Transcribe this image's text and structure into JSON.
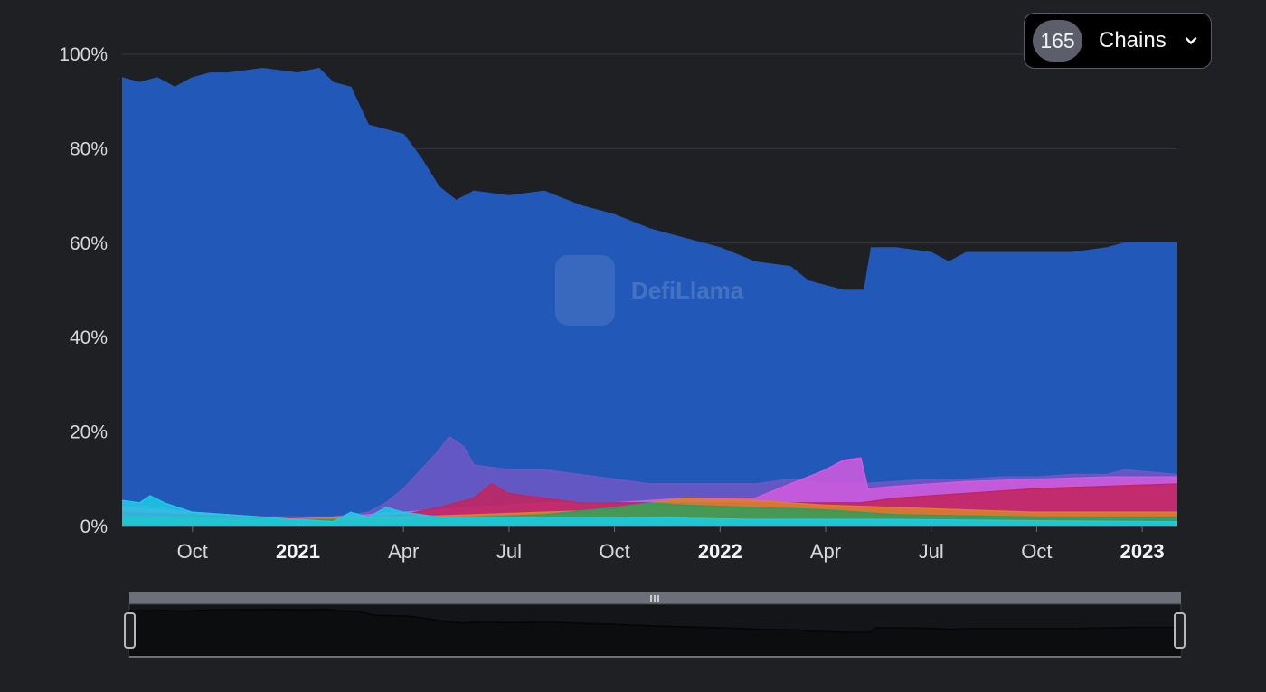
{
  "chain_selector": {
    "count": "165",
    "label": "Chains"
  },
  "watermark": "DefiLlama",
  "colors": {
    "background": "#1f2024",
    "grid": "#34363d",
    "axis_text": "#d8d8d8",
    "ethereum": "#2259b8"
  },
  "chart_data": {
    "type": "area",
    "stacked_percent": true,
    "y_ticks": [
      "0%",
      "20%",
      "40%",
      "60%",
      "80%",
      "100%"
    ],
    "ylim": [
      0,
      100
    ],
    "x_ticks": [
      {
        "label": "Oct",
        "bold": false,
        "t": 2
      },
      {
        "label": "2021",
        "bold": true,
        "t": 5
      },
      {
        "label": "Apr",
        "bold": false,
        "t": 8
      },
      {
        "label": "Jul",
        "bold": false,
        "t": 11
      },
      {
        "label": "Oct",
        "bold": false,
        "t": 14
      },
      {
        "label": "2022",
        "bold": true,
        "t": 17
      },
      {
        "label": "Apr",
        "bold": false,
        "t": 20
      },
      {
        "label": "Jul",
        "bold": false,
        "t": 23
      },
      {
        "label": "Oct",
        "bold": false,
        "t": 26
      },
      {
        "label": "2023",
        "bold": true,
        "t": 29
      }
    ],
    "xlim": [
      0,
      30
    ],
    "grid": true,
    "series": [
      {
        "color": "#2259b8",
        "points": [
          [
            0,
            95
          ],
          [
            0.5,
            94
          ],
          [
            1,
            95
          ],
          [
            1.5,
            93
          ],
          [
            2,
            95
          ],
          [
            2.5,
            96
          ],
          [
            3,
            96
          ],
          [
            4,
            97
          ],
          [
            5,
            96
          ],
          [
            5.6,
            97
          ],
          [
            6,
            94
          ],
          [
            6.5,
            93
          ],
          [
            7,
            85
          ],
          [
            8,
            83
          ],
          [
            8.5,
            78
          ],
          [
            9,
            72
          ],
          [
            9.5,
            69
          ],
          [
            10,
            71
          ],
          [
            11,
            70
          ],
          [
            12,
            71
          ],
          [
            13,
            68
          ],
          [
            14,
            66
          ],
          [
            15,
            63
          ],
          [
            16,
            61
          ],
          [
            17,
            59
          ],
          [
            18,
            56
          ],
          [
            19,
            55
          ],
          [
            19.5,
            52
          ],
          [
            20,
            51
          ],
          [
            20.5,
            50
          ],
          [
            21.1,
            50
          ],
          [
            21.3,
            59
          ],
          [
            22,
            59
          ],
          [
            23,
            58
          ],
          [
            23.5,
            56
          ],
          [
            24,
            58
          ],
          [
            25,
            58
          ],
          [
            26,
            58
          ],
          [
            27,
            58
          ],
          [
            28,
            59
          ],
          [
            28.5,
            60
          ],
          [
            30,
            60
          ]
        ]
      },
      {
        "color": "#6e58c4",
        "points": [
          [
            0,
            5
          ],
          [
            1,
            4
          ],
          [
            2,
            3
          ],
          [
            3,
            2.5
          ],
          [
            4,
            2
          ],
          [
            5,
            1.5
          ],
          [
            6,
            2
          ],
          [
            7,
            3
          ],
          [
            7.5,
            5
          ],
          [
            8,
            8
          ],
          [
            8.5,
            12
          ],
          [
            9,
            16
          ],
          [
            9.3,
            19
          ],
          [
            9.7,
            17
          ],
          [
            10,
            13
          ],
          [
            11,
            12
          ],
          [
            12,
            12
          ],
          [
            13,
            11
          ],
          [
            14,
            10
          ],
          [
            15,
            9
          ],
          [
            16,
            9
          ],
          [
            17,
            9
          ],
          [
            18,
            9
          ],
          [
            19,
            10
          ],
          [
            20,
            9
          ],
          [
            21,
            9
          ],
          [
            22,
            9.5
          ],
          [
            23,
            10
          ],
          [
            24,
            10
          ],
          [
            25,
            10.5
          ],
          [
            26,
            10.5
          ],
          [
            27,
            11
          ],
          [
            28,
            11
          ],
          [
            28.5,
            12
          ],
          [
            30,
            11
          ]
        ]
      },
      {
        "color": "#d35ae0",
        "points": [
          [
            0,
            4
          ],
          [
            2,
            3
          ],
          [
            4,
            2
          ],
          [
            6,
            2
          ],
          [
            8,
            3
          ],
          [
            10,
            4
          ],
          [
            12,
            5
          ],
          [
            14,
            5
          ],
          [
            16,
            6
          ],
          [
            18,
            6
          ],
          [
            19,
            9
          ],
          [
            20,
            12
          ],
          [
            20.5,
            14
          ],
          [
            21,
            14.5
          ],
          [
            21.2,
            8
          ],
          [
            22,
            8.5
          ],
          [
            24,
            9.5
          ],
          [
            26,
            10
          ],
          [
            28,
            10.5
          ],
          [
            30,
            10.5
          ]
        ]
      },
      {
        "color": "#c2255c",
        "points": [
          [
            0,
            3
          ],
          [
            2,
            2.5
          ],
          [
            4,
            2
          ],
          [
            6,
            1.5
          ],
          [
            8,
            2.5
          ],
          [
            9,
            4
          ],
          [
            10,
            6
          ],
          [
            10.5,
            9
          ],
          [
            11,
            7
          ],
          [
            12,
            6
          ],
          [
            13,
            5
          ],
          [
            14,
            5
          ],
          [
            16,
            5
          ],
          [
            18,
            5
          ],
          [
            20,
            5
          ],
          [
            21,
            5
          ],
          [
            22,
            6
          ],
          [
            24,
            7
          ],
          [
            26,
            8
          ],
          [
            28,
            8.5
          ],
          [
            30,
            9
          ]
        ]
      },
      {
        "color": "#d9822b",
        "points": [
          [
            0,
            2
          ],
          [
            4,
            1.5
          ],
          [
            8,
            2
          ],
          [
            10,
            2.5
          ],
          [
            12,
            3
          ],
          [
            14,
            3.5
          ],
          [
            15,
            5
          ],
          [
            16,
            6
          ],
          [
            18,
            5.5
          ],
          [
            20,
            4.5
          ],
          [
            22,
            4
          ],
          [
            24,
            3.5
          ],
          [
            26,
            3
          ],
          [
            28,
            3
          ],
          [
            30,
            3
          ]
        ]
      },
      {
        "color": "#2e9e5b",
        "points": [
          [
            0,
            2
          ],
          [
            4,
            1.5
          ],
          [
            8,
            1.5
          ],
          [
            10,
            2
          ],
          [
            12,
            2.5
          ],
          [
            14,
            4
          ],
          [
            15,
            5
          ],
          [
            16,
            4.5
          ],
          [
            18,
            4
          ],
          [
            20,
            3.5
          ],
          [
            22,
            2.5
          ],
          [
            26,
            2
          ],
          [
            30,
            2
          ]
        ]
      },
      {
        "color": "#1ccbe6",
        "points": [
          [
            0,
            5.5
          ],
          [
            0.5,
            5
          ],
          [
            0.8,
            6.5
          ],
          [
            1.2,
            5
          ],
          [
            2,
            3
          ],
          [
            3,
            2.5
          ],
          [
            4,
            2
          ],
          [
            5,
            1.5
          ],
          [
            6,
            1
          ],
          [
            6.5,
            3
          ],
          [
            7,
            2
          ],
          [
            7.5,
            4
          ],
          [
            8,
            3
          ],
          [
            9,
            2
          ],
          [
            12,
            2
          ],
          [
            14,
            2
          ],
          [
            18,
            1.5
          ],
          [
            22,
            1.5
          ],
          [
            26,
            1.2
          ],
          [
            30,
            1
          ]
        ]
      }
    ]
  }
}
